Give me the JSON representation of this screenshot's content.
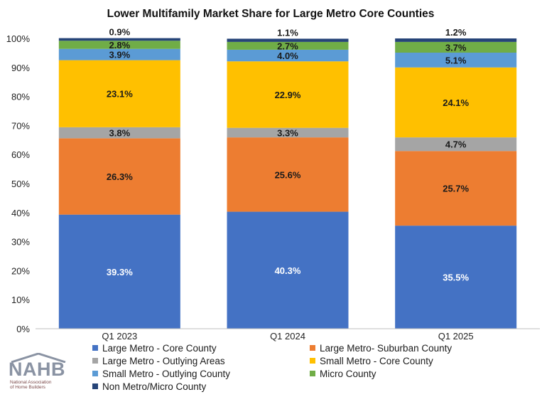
{
  "chart_data": {
    "type": "bar",
    "stacked": true,
    "title": "Lower Multifamily Market Share for Large Metro Core Counties",
    "categories": [
      "Q1 2023",
      "Q1 2024",
      "Q1 2025"
    ],
    "y_ticks": [
      "0%",
      "10%",
      "20%",
      "30%",
      "40%",
      "50%",
      "60%",
      "70%",
      "80%",
      "90%",
      "100%"
    ],
    "ylim": [
      0,
      100
    ],
    "series": [
      {
        "name": "Large Metro - Core County",
        "color": "#4472C4",
        "label_color": "#ffffff",
        "values": [
          39.3,
          40.3,
          35.5
        ],
        "labels": [
          "39.3%",
          "40.3%",
          "35.5%"
        ]
      },
      {
        "name": "Large Metro- Suburban County",
        "color": "#ED7D31",
        "label_color": "#1a1a1a",
        "values": [
          26.3,
          25.6,
          25.7
        ],
        "labels": [
          "26.3%",
          "25.6%",
          "25.7%"
        ]
      },
      {
        "name": "Large Metro - Outlying Areas",
        "color": "#A5A5A5",
        "label_color": "#1a1a1a",
        "values": [
          3.8,
          3.3,
          4.7
        ],
        "labels": [
          "3.8%",
          "3.3%",
          "4.7%"
        ]
      },
      {
        "name": "Small Metro - Core County",
        "color": "#FFC000",
        "label_color": "#1a1a1a",
        "values": [
          23.1,
          22.9,
          24.1
        ],
        "labels": [
          "23.1%",
          "22.9%",
          "24.1%"
        ]
      },
      {
        "name": "Small Metro - Outlying County",
        "color": "#5B9BD5",
        "label_color": "#1a1a1a",
        "values": [
          3.9,
          4.0,
          5.1
        ],
        "labels": [
          "3.9%",
          "4.0%",
          "5.1%"
        ]
      },
      {
        "name": "Micro County",
        "color": "#70AD47",
        "label_color": "#1a1a1a",
        "values": [
          2.8,
          2.7,
          3.7
        ],
        "labels": [
          "2.8%",
          "2.7%",
          "3.7%"
        ]
      },
      {
        "name": "Non Metro/Micro County",
        "color": "#264478",
        "label_color": "#1a1a1a",
        "values": [
          0.9,
          1.1,
          1.2
        ],
        "labels": [
          "0.9%",
          "1.1%",
          "1.2%"
        ]
      }
    ],
    "legend_position": "bottom",
    "grid": false
  },
  "logo": {
    "name": "NAHB",
    "subtitle": "National Association of Home Builders"
  }
}
